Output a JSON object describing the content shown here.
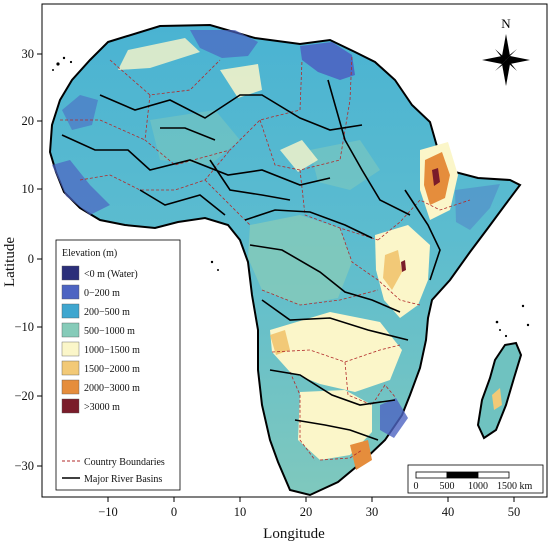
{
  "map": {
    "xlabel": "Longitude",
    "ylabel": "Latitude",
    "x_ticks": [
      "−10",
      "0",
      "10",
      "20",
      "30",
      "40",
      "50"
    ],
    "y_ticks": [
      "30",
      "20",
      "10",
      "0",
      "−10",
      "−20",
      "−30"
    ],
    "x_range": [
      -18,
      55
    ],
    "y_range": [
      -36,
      38
    ]
  },
  "north_arrow": {
    "label": "N"
  },
  "legend": {
    "title": "Elevation (m)",
    "classes": [
      {
        "label": "<0 m (Water)",
        "color": "#2b2f7a"
      },
      {
        "label": "0−200 m",
        "color": "#4d64c2"
      },
      {
        "label": "200−500 m",
        "color": "#3fa6cf"
      },
      {
        "label": "500−1000 m",
        "color": "#86cbb9"
      },
      {
        "label": "1000−1500 m",
        "color": "#fbf6c9"
      },
      {
        "label": "1500−2000 m",
        "color": "#f2c977"
      },
      {
        "label": "2000−3000 m",
        "color": "#e58d3c"
      },
      {
        "label": ">3000 m",
        "color": "#7a1c2a"
      }
    ],
    "lines": [
      {
        "label": "Country Boundaries",
        "color": "#b22a2a"
      },
      {
        "label": "Major River Basins",
        "color": "#000000"
      }
    ]
  },
  "scale_bar": {
    "labels": [
      "0",
      "500",
      "1000",
      "1500 km"
    ]
  }
}
